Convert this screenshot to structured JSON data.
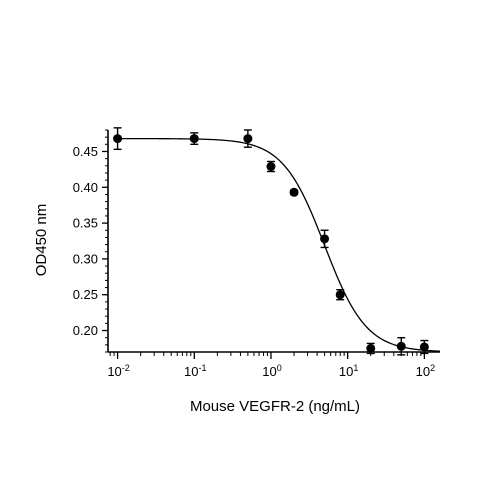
{
  "chart_data": {
    "type": "scatter",
    "title": "",
    "xlabel": "Mouse VEGFR-2 (ng/mL)",
    "ylabel": "OD450 nm",
    "xscale": "log",
    "xlim": [
      0.0075,
      160
    ],
    "ylim": [
      0.17,
      0.48
    ],
    "x_ticks": [
      {
        "value": 0.01,
        "base": "10",
        "exp": "-2"
      },
      {
        "value": 0.1,
        "base": "10",
        "exp": "-1"
      },
      {
        "value": 1,
        "base": "10",
        "exp": "0"
      },
      {
        "value": 10,
        "base": "10",
        "exp": "1"
      },
      {
        "value": 100,
        "base": "10",
        "exp": "2"
      }
    ],
    "y_ticks": [
      {
        "value": 0.2,
        "label": "0.20"
      },
      {
        "value": 0.25,
        "label": "0.25"
      },
      {
        "value": 0.3,
        "label": "0.30"
      },
      {
        "value": 0.35,
        "label": "0.35"
      },
      {
        "value": 0.4,
        "label": "0.40"
      },
      {
        "value": 0.45,
        "label": "0.45"
      }
    ],
    "points": [
      {
        "x": 0.01,
        "y": 0.468,
        "err": 0.015
      },
      {
        "x": 0.1,
        "y": 0.468,
        "err": 0.008
      },
      {
        "x": 0.5,
        "y": 0.468,
        "err": 0.012
      },
      {
        "x": 1,
        "y": 0.429,
        "err": 0.007
      },
      {
        "x": 2,
        "y": 0.393,
        "err": 0.003
      },
      {
        "x": 5,
        "y": 0.328,
        "err": 0.012
      },
      {
        "x": 8,
        "y": 0.25,
        "err": 0.007
      },
      {
        "x": 20,
        "y": 0.175,
        "err": 0.007
      },
      {
        "x": 50,
        "y": 0.178,
        "err": 0.012
      },
      {
        "x": 100,
        "y": 0.177,
        "err": 0.009
      }
    ],
    "fit": {
      "model": "4PL",
      "top": 0.468,
      "bottom": 0.17,
      "ec50": 5.0,
      "hill": 1.6
    },
    "grid": false,
    "legend": "none"
  }
}
